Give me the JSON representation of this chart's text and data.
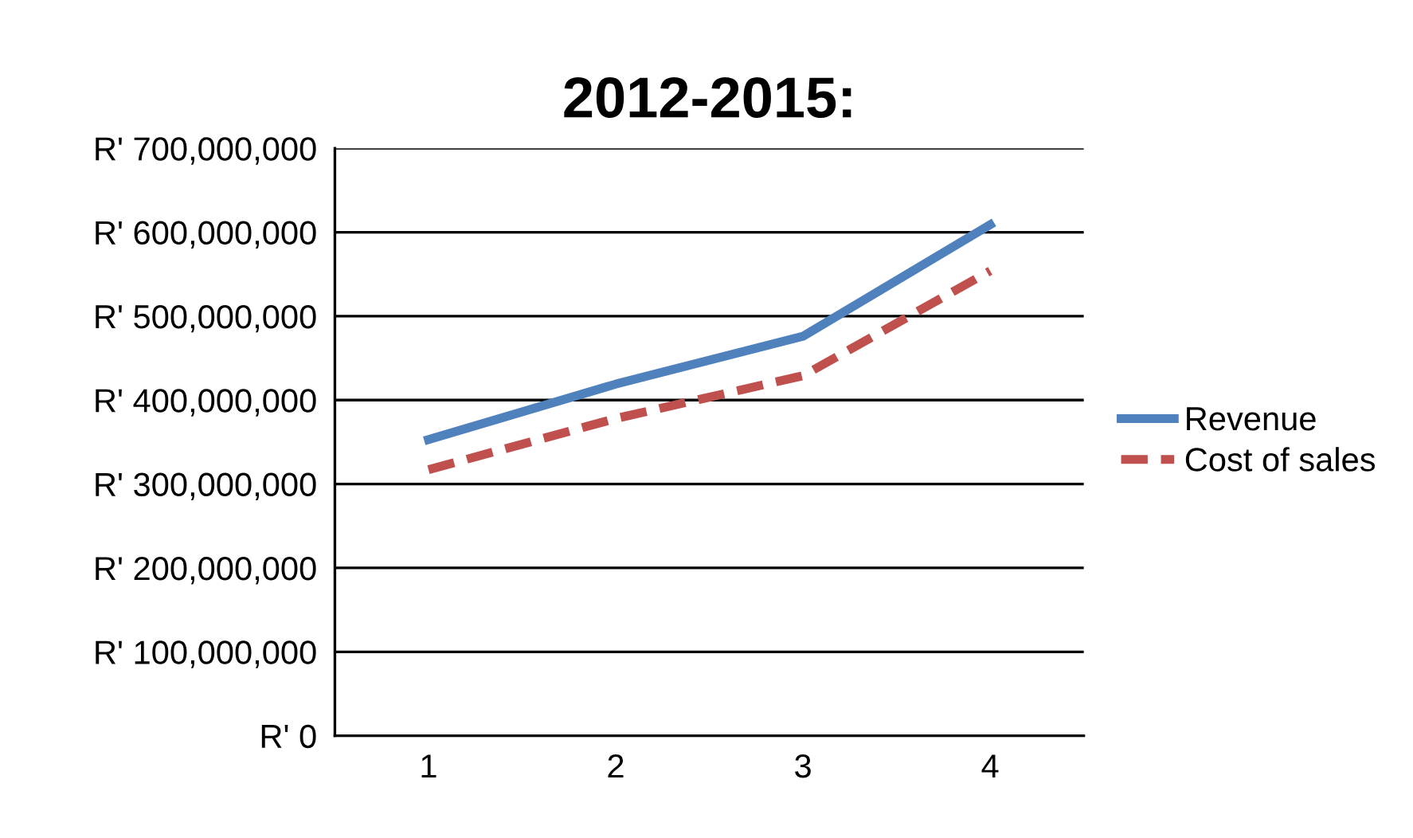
{
  "chart_data": {
    "type": "line",
    "title": "2012-2015:",
    "categories": [
      "1",
      "2",
      "3",
      "4"
    ],
    "series": [
      {
        "name": "Revenue",
        "color": "#4f81bd",
        "values": [
          353000000,
          419000000,
          476000000,
          609000000
        ],
        "line_style": "solid"
      },
      {
        "name": "Cost of sales",
        "color": "#c0504d",
        "values": [
          317000000,
          378000000,
          429000000,
          554000000
        ],
        "line_style": "dashed"
      }
    ],
    "ylim": [
      0,
      700000000
    ],
    "yticks": [
      {
        "value": 0,
        "label": "R' 0"
      },
      {
        "value": 100000000,
        "label": "R' 100,000,000"
      },
      {
        "value": 200000000,
        "label": "R' 200,000,000"
      },
      {
        "value": 300000000,
        "label": "R' 300,000,000"
      },
      {
        "value": 400000000,
        "label": "R' 400,000,000"
      },
      {
        "value": 500000000,
        "label": "R' 500,000,000"
      },
      {
        "value": 600000000,
        "label": "R' 600,000,000"
      },
      {
        "value": 700000000,
        "label": "R' 700,000,000"
      }
    ],
    "grid": "y",
    "legend": "right",
    "marker": "none"
  }
}
